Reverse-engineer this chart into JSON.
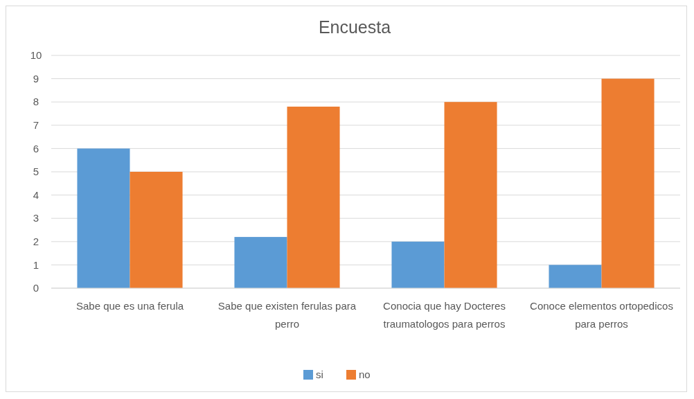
{
  "chart_data": {
    "type": "bar",
    "title": "Encuesta",
    "categories": [
      "Sabe que es una ferula",
      "Sabe que existen ferulas para perro",
      "Conocia que hay Docteres traumatologos para perros",
      "Conoce elementos ortopedicos para perros"
    ],
    "series": [
      {
        "name": "si",
        "color": "#5b9bd5",
        "values": [
          6,
          2.2,
          2,
          1
        ]
      },
      {
        "name": "no",
        "color": "#ed7d31",
        "values": [
          5,
          7.8,
          8,
          9
        ]
      }
    ],
    "ylim": [
      0,
      10
    ],
    "yticks": [
      0,
      1,
      2,
      3,
      4,
      5,
      6,
      7,
      8,
      9,
      10
    ],
    "grid": "y",
    "legend": "bottom"
  }
}
